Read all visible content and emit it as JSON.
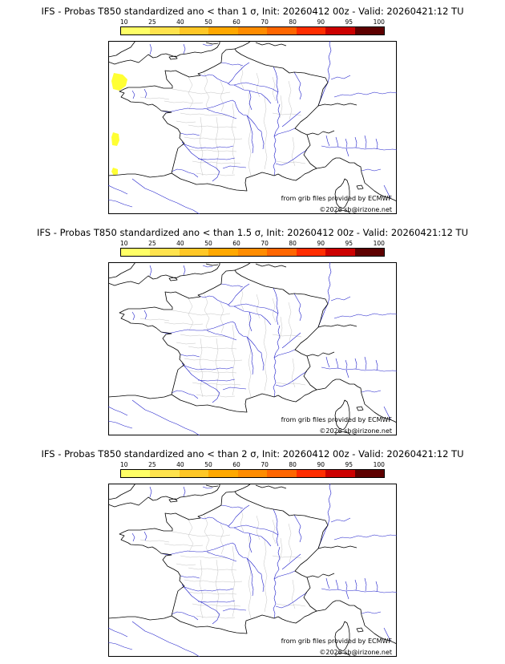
{
  "panels": [
    {
      "title": "IFS - Probas T850  standardized ano < than 1 σ, Init: 20260412 00z - Valid: 20260421:12 TU",
      "credit": "from grib files provided by ECMWF",
      "copyright": "©2026 sb@irizone.net"
    },
    {
      "title": "IFS - Probas T850  standardized ano < than 1.5 σ, Init: 20260412 00z - Valid: 20260421:12 TU",
      "credit": "from grib files provided by ECMWF",
      "copyright": "©2026 sb@irizone.net"
    },
    {
      "title": "IFS - Probas T850  standardized ano < than 2 σ, Init: 20260412 00z - Valid: 20260421:12 TU",
      "credit": "from grib files provided by ECMWF",
      "copyright": "©2026 sb@irizone.net"
    }
  ],
  "colorbar": {
    "ticks": [
      "10",
      "25",
      "40",
      "50",
      "60",
      "70",
      "80",
      "90",
      "95",
      "100"
    ],
    "colors": [
      "#ffff66",
      "#ffe34d",
      "#ffc726",
      "#ffa800",
      "#ff8c00",
      "#ff6600",
      "#ff2d00",
      "#cc0000",
      "#5e0000"
    ]
  },
  "map": {
    "line_colors": {
      "coastline": "#000000",
      "rivers": "#2323cc",
      "department_boundaries": "#c4c4c4"
    },
    "patch_color": "#ffff33"
  }
}
